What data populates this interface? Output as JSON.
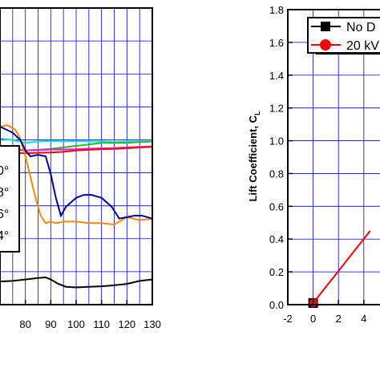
{
  "chart_data": [
    {
      "type": "line",
      "title": "",
      "xlabel": "",
      "ylabel": "",
      "xlim": [
        70,
        130
      ],
      "x_ticks": [
        "80",
        "90",
        "100",
        "110",
        "120",
        "130"
      ],
      "grid": true,
      "legend": {
        "placement": "left",
        "entries": [
          "0°",
          "8°",
          "6°",
          "4°"
        ]
      },
      "series": [
        {
          "color": "#00e5e5",
          "x": [
            70,
            75,
            80,
            85,
            90,
            95,
            100,
            105,
            110,
            115,
            120,
            125,
            130
          ],
          "y": [
            0.56,
            0.555,
            0.545,
            0.55,
            0.552,
            0.55,
            0.552,
            0.55,
            0.55,
            0.548,
            0.55,
            0.55,
            0.55
          ]
        },
        {
          "color": "#22bb22",
          "x": [
            70,
            75,
            80,
            85,
            90,
            95,
            100,
            105,
            110,
            115,
            120,
            125,
            130
          ],
          "y": [
            0.53,
            0.528,
            0.52,
            0.522,
            0.525,
            0.53,
            0.535,
            0.54,
            0.545,
            0.545,
            0.545,
            0.548,
            0.55
          ]
        },
        {
          "color": "#e020e0",
          "x": [
            70,
            75,
            80,
            85,
            90,
            95,
            100,
            105,
            110,
            115,
            120,
            125,
            130
          ],
          "y": [
            0.525,
            0.522,
            0.52,
            0.521,
            0.523,
            0.523,
            0.524,
            0.526,
            0.527,
            0.528,
            0.53,
            0.532,
            0.533
          ]
        },
        {
          "color": "#ff0000",
          "x": [
            70,
            75,
            80,
            85,
            90,
            95,
            100,
            105,
            110,
            115,
            120,
            125,
            130
          ],
          "y": [
            0.515,
            0.512,
            0.51,
            0.512,
            0.513,
            0.515,
            0.52,
            0.522,
            0.524,
            0.525,
            0.527,
            0.53,
            0.532
          ]
        },
        {
          "color": "#ff8800",
          "x": [
            70,
            73,
            76,
            78,
            80,
            82,
            84,
            86,
            88,
            90,
            92,
            95,
            100,
            105,
            110,
            115,
            120,
            125,
            130
          ],
          "y": [
            0.6,
            0.605,
            0.59,
            0.56,
            0.5,
            0.43,
            0.36,
            0.3,
            0.275,
            0.28,
            0.275,
            0.28,
            0.28,
            0.275,
            0.275,
            0.27,
            0.295,
            0.285,
            0.29
          ]
        },
        {
          "color": "#000099",
          "x": [
            70,
            75,
            78,
            80,
            82,
            85,
            88,
            90,
            92,
            94,
            96,
            100,
            103,
            106,
            110,
            114,
            117,
            120,
            123,
            126,
            130
          ],
          "y": [
            0.6,
            0.58,
            0.555,
            0.52,
            0.5,
            0.505,
            0.5,
            0.44,
            0.36,
            0.3,
            0.33,
            0.36,
            0.37,
            0.37,
            0.36,
            0.33,
            0.29,
            0.295,
            0.3,
            0.3,
            0.29
          ]
        },
        {
          "color": "#000000",
          "x": [
            70,
            75,
            80,
            85,
            88,
            90,
            93,
            96,
            100,
            105,
            110,
            115,
            120,
            125,
            130
          ],
          "y": [
            0.078,
            0.08,
            0.085,
            0.09,
            0.092,
            0.085,
            0.07,
            0.06,
            0.058,
            0.06,
            0.062,
            0.065,
            0.07,
            0.08,
            0.085
          ]
        }
      ]
    },
    {
      "type": "line",
      "title": "",
      "xlabel": "",
      "ylabel": "Lift Coefficient, C",
      "ylabel_subscript": "L",
      "xlim": [
        -2,
        6.6
      ],
      "ylim": [
        0,
        1.8
      ],
      "x_ticks": [
        "-2",
        "0",
        "2",
        "4"
      ],
      "y_ticks": [
        "0.0",
        "0.2",
        "0.4",
        "0.6",
        "0.8",
        "1.0",
        "1.2",
        "1.4",
        "1.6",
        "1.8"
      ],
      "grid": true,
      "legend": {
        "placement": "top-right",
        "entries": [
          "No D",
          "20 kV"
        ]
      },
      "series": [
        {
          "name": "No D",
          "color": "#000000",
          "marker": "square",
          "x": [
            0
          ],
          "y": [
            0.01
          ]
        },
        {
          "name": "20 kV",
          "color": "#ff0000",
          "marker": "circle",
          "x": [
            0,
            4.5
          ],
          "y": [
            0.01,
            0.45
          ]
        }
      ]
    }
  ]
}
